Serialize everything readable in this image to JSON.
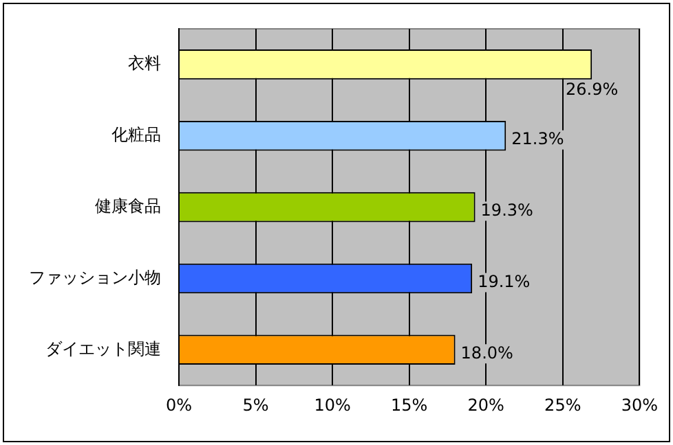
{
  "chart_data": {
    "type": "bar",
    "orientation": "horizontal",
    "categories": [
      "衣料",
      "化粧品",
      "健康食品",
      "ファッション小物",
      "ダイエット関連"
    ],
    "values": [
      26.9,
      21.3,
      19.3,
      19.1,
      18.0
    ],
    "colors": [
      "#ffff99",
      "#99ccff",
      "#99cc00",
      "#3366ff",
      "#ff9900"
    ],
    "value_labels": [
      "26.9%",
      "21.3%",
      "19.3%",
      "19.1%",
      "18.0%"
    ],
    "xlim": [
      0,
      30
    ],
    "xticks": [
      {
        "value": 0,
        "label": "0%"
      },
      {
        "value": 5,
        "label": "5%"
      },
      {
        "value": 10,
        "label": "10%"
      },
      {
        "value": 15,
        "label": "15%"
      },
      {
        "value": 20,
        "label": "20%"
      },
      {
        "value": 25,
        "label": "25%"
      },
      {
        "value": 30,
        "label": "30%"
      }
    ],
    "grid": "x",
    "legend": false
  }
}
